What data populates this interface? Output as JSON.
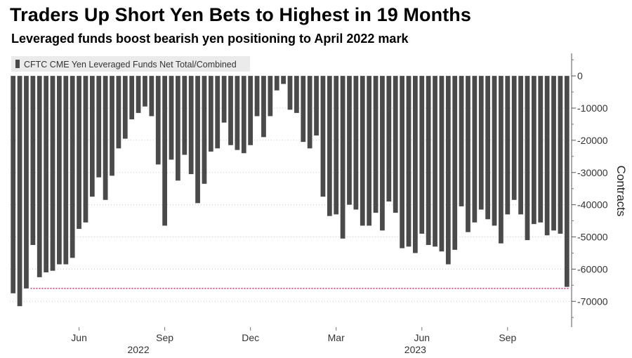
{
  "title": "Traders Up Short Yen Bets to Highest in 19 Months",
  "subtitle": "Leveraged funds boost bearish yen positioning to April 2022 mark",
  "chart_data": {
    "type": "bar",
    "legend": "CFTC CME Yen Leveraged Funds Net Total/Combined",
    "legend_position": "top-left",
    "ylabel": "Contracts",
    "y_axis_side": "right",
    "ylim": [
      -78000,
      7000
    ],
    "yticks": [
      0,
      -10000,
      -20000,
      -30000,
      -40000,
      -50000,
      -60000,
      -70000
    ],
    "ytick_labels": [
      "0",
      "-10000",
      "-20000",
      "-30000",
      "-40000",
      "-50000",
      "-60000",
      "-70000"
    ],
    "grid": "horizontal dotted",
    "x_tick_labels": [
      {
        "label": "Jun",
        "bar_index": 10
      },
      {
        "label": "Sep",
        "bar_index": 23
      },
      {
        "label": "Dec",
        "bar_index": 36
      },
      {
        "label": "Mar",
        "bar_index": 49
      },
      {
        "label": "Jun",
        "bar_index": 62
      },
      {
        "label": "Sep",
        "bar_index": 75
      }
    ],
    "year_labels": [
      {
        "label": "2022",
        "bar_index": 19
      },
      {
        "label": "2023",
        "bar_index": 61
      }
    ],
    "reference_line": {
      "value": -66000,
      "style": "dotted",
      "color": "#e0407a"
    },
    "bar_color": "#4a4a4a",
    "values": [
      -67500,
      -71500,
      -66000,
      -52500,
      -62500,
      -61000,
      -60500,
      -58500,
      -58500,
      -56500,
      -47500,
      -45500,
      -37500,
      -31500,
      -38500,
      -31000,
      -22500,
      -19500,
      -13500,
      -11500,
      -9500,
      -12500,
      -27500,
      -46500,
      -26000,
      -32500,
      -24500,
      -30500,
      -39500,
      -33500,
      -23500,
      -22500,
      -14500,
      -21500,
      -23000,
      -24000,
      -21500,
      -12500,
      -19000,
      -12500,
      -4500,
      -2500,
      -10500,
      -11500,
      -20500,
      -22500,
      -18500,
      -37500,
      -43500,
      -43000,
      -50500,
      -40000,
      -41500,
      -46500,
      -46500,
      -42500,
      -48000,
      -39000,
      -42500,
      -53500,
      -53000,
      -55000,
      -49000,
      -52500,
      -53000,
      -54500,
      -58500,
      -54000,
      -40500,
      -48500,
      -45500,
      -41500,
      -44500,
      -46500,
      -52000,
      -43000,
      -38500,
      -43000,
      -51000,
      -46000,
      -45500,
      -49500,
      -48000,
      -49000,
      -65500
    ]
  }
}
